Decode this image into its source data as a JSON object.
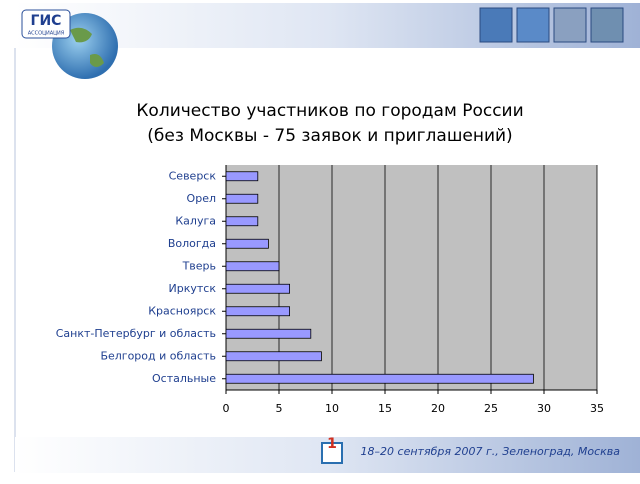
{
  "logo": {
    "title": "ГИС",
    "subtitle": "АССОЦИАЦИЯ"
  },
  "chart_data": {
    "type": "bar",
    "orientation": "horizontal",
    "title": "Количество участников по городам России",
    "subtitle": "(без Москвы - 75 заявок и приглашений)",
    "categories": [
      "Северск",
      "Орел",
      "Калуга",
      "Вологда",
      "Тверь",
      "Иркутск",
      "Красноярск",
      "Санкт-Петербург и область",
      "Белгород и область",
      "Остальные"
    ],
    "values": [
      3,
      3,
      3,
      4,
      5,
      6,
      6,
      8,
      9,
      29
    ],
    "color": "#9999ff",
    "xlim": [
      0,
      35
    ],
    "xticks": [
      0,
      5,
      10,
      15,
      20,
      25,
      30,
      35
    ],
    "grid": true
  },
  "footer": {
    "page_number": "1",
    "text": "18–20 сентября 2007 г., Зеленоград, Москва"
  }
}
